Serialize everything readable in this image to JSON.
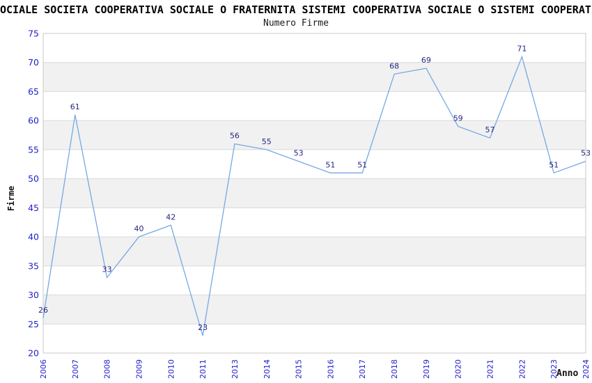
{
  "chart_data": {
    "type": "line",
    "title": "OCIALE SOCIETA COOPERATIVA SOCIALE O FRATERNITA SISTEMI COOPERATIVA SOCIALE O SISTEMI COOPERATI",
    "subtitle": "Numero Firme",
    "xlabel": "Anno",
    "ylabel": "Firme",
    "categories": [
      "2006",
      "2007",
      "2008",
      "2009",
      "2010",
      "2011",
      "2013",
      "2014",
      "2015",
      "2016",
      "2017",
      "2018",
      "2019",
      "2020",
      "2021",
      "2022",
      "2023",
      "2024"
    ],
    "values": [
      26,
      61,
      33,
      40,
      42,
      23,
      56,
      55,
      53,
      51,
      51,
      68,
      69,
      59,
      57,
      71,
      51,
      53
    ],
    "ylim": [
      20,
      75
    ],
    "ytick_step": 5,
    "grid": "horizontal-bands",
    "legend": "none",
    "data_labels": "above-points",
    "colors": {
      "line": "#74a9e2",
      "value_label": "#252582",
      "tick_label": "#1f1fc8",
      "band": "#f1f1f1",
      "gridline": "#dadada",
      "border": "#c9c9c9",
      "title": "#000000",
      "background": "#ffffff"
    }
  }
}
